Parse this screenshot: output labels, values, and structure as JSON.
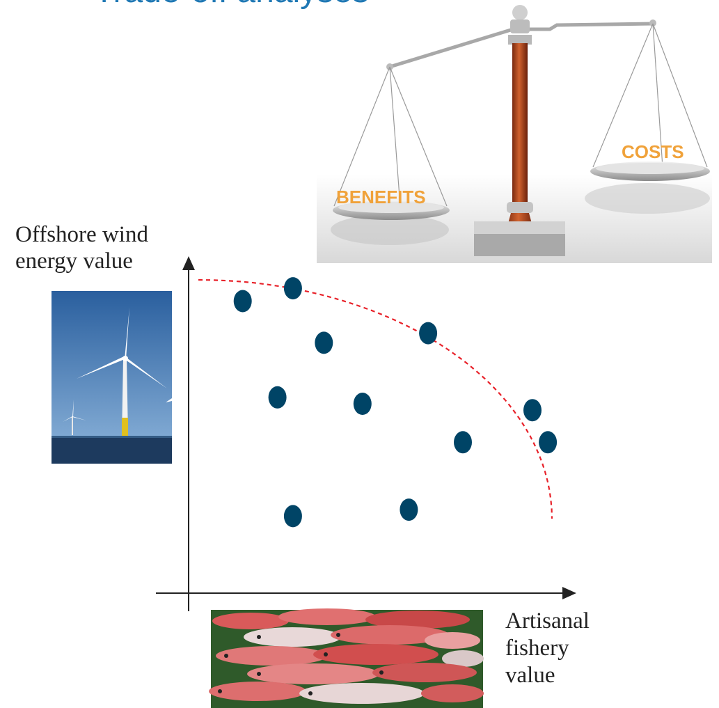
{
  "title": "Trade-off analyses",
  "scale_labels": {
    "left": "BENEFITS",
    "right": "COSTS",
    "color": "#f0a23a"
  },
  "chart_data": {
    "type": "scatter",
    "xlabel_lines": [
      "Artisanal",
      "fishery",
      "value"
    ],
    "ylabel_lines": [
      "Offshore wind",
      "energy value"
    ],
    "xlim": [
      0,
      10
    ],
    "ylim": [
      0,
      10
    ],
    "points": [
      {
        "x": 1.4,
        "y": 9.1
      },
      {
        "x": 2.7,
        "y": 9.5
      },
      {
        "x": 3.5,
        "y": 7.8
      },
      {
        "x": 6.2,
        "y": 8.1
      },
      {
        "x": 2.3,
        "y": 6.1
      },
      {
        "x": 4.5,
        "y": 5.9
      },
      {
        "x": 8.9,
        "y": 5.7
      },
      {
        "x": 7.1,
        "y": 4.7
      },
      {
        "x": 9.3,
        "y": 4.7
      },
      {
        "x": 2.7,
        "y": 2.4
      },
      {
        "x": 5.7,
        "y": 2.6
      }
    ],
    "frontier": {
      "style": "dashed",
      "color": "#e8222a"
    },
    "point_color": "#004466"
  }
}
